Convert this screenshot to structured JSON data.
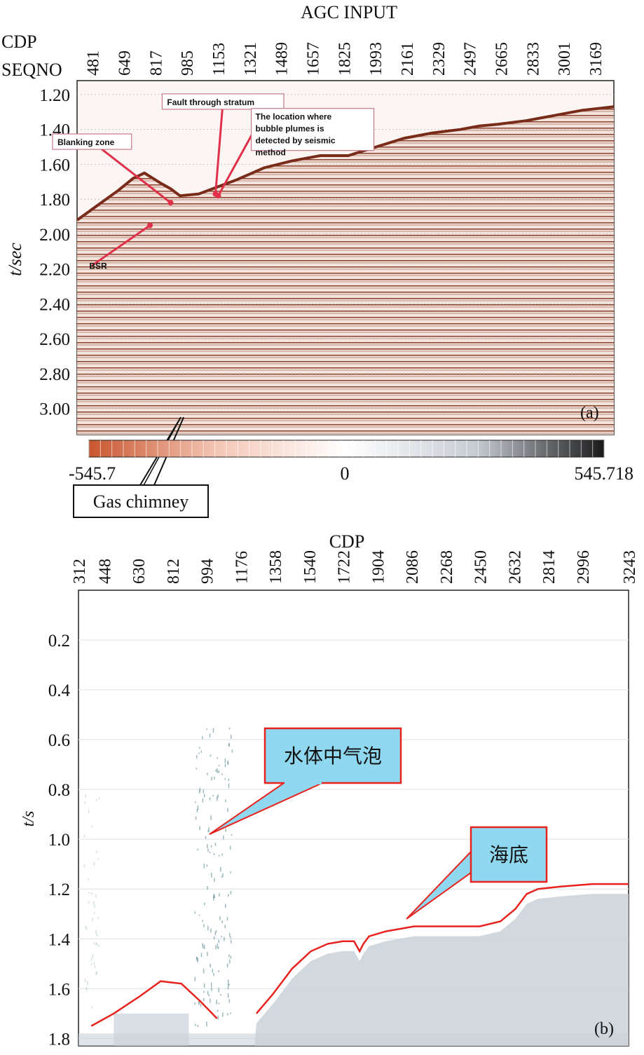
{
  "chart_data": [
    {
      "type": "heatmap",
      "panel_label": "(a)",
      "title": "AGC INPUT",
      "top_axis_labels": [
        "CDP",
        "SEQNO"
      ],
      "x_ticks": [
        "481",
        "649",
        "817",
        "985",
        "1153",
        "1321",
        "1489",
        "1657",
        "1825",
        "1993",
        "2161",
        "2329",
        "2497",
        "2665",
        "2833",
        "3001",
        "3169"
      ],
      "ylabel": "t/sec",
      "y_ticks": [
        "1.20",
        "1.40",
        "1.60",
        "1.80",
        "2.00",
        "2.20",
        "2.40",
        "2.60",
        "2.80",
        "3.00"
      ],
      "ylim": [
        3.15,
        1.12
      ],
      "xlim": [
        400,
        3270
      ],
      "seafloor": {
        "x": [
          400,
          620,
          700,
          760,
          850,
          900,
          950,
          1050,
          1150,
          1250,
          1400,
          1550,
          1700,
          1850,
          2000,
          2150,
          2300,
          2450,
          2550,
          2650,
          2800,
          2950,
          3100,
          3270
        ],
        "t": [
          1.92,
          1.75,
          1.68,
          1.65,
          1.71,
          1.74,
          1.78,
          1.77,
          1.73,
          1.69,
          1.62,
          1.58,
          1.55,
          1.55,
          1.5,
          1.45,
          1.42,
          1.4,
          1.38,
          1.37,
          1.35,
          1.32,
          1.29,
          1.27
        ]
      },
      "annotations": [
        {
          "label": "Blanking zone",
          "text_x": 480,
          "text_t": 1.47,
          "arrow_to_x": 900,
          "arrow_to_t": 1.82
        },
        {
          "label": "Fault through stratum",
          "text_x": 1180,
          "text_t": 1.24,
          "arrow_to_x": 1140,
          "arrow_to_t": 1.77
        },
        {
          "label": "The location where bubble plumes is detected by seismic method",
          "text_x": 1350,
          "text_t": 1.4,
          "arrow_to_x": 1155,
          "arrow_to_t": 1.78
        },
        {
          "label": "BSR",
          "text_x": 480,
          "text_t": 2.18,
          "arrow_to_x": 790,
          "arrow_to_t": 1.95
        },
        {
          "label": "Gas chimney",
          "text_x": 700,
          "text_t": 3.55,
          "arrow_to_x": 955,
          "arrow_to_t": 3.05
        }
      ],
      "colorbar": {
        "min_label": "-545.7",
        "mid_label": "0",
        "max_label": "545.718",
        "colors": [
          "#c8562f",
          "#f4c7b6",
          "#ffffff",
          "#c7ccd3",
          "#1a1a1a"
        ]
      }
    },
    {
      "type": "heatmap",
      "panel_label": "(b)",
      "title": "CDP",
      "x_ticks": [
        "312",
        "448",
        "630",
        "812",
        "994",
        "1176",
        "1358",
        "1540",
        "1722",
        "1904",
        "2086",
        "2268",
        "2450",
        "2632",
        "2814",
        "2996",
        "3243"
      ],
      "ylabel": "t/s",
      "y_ticks": [
        "0.2",
        "0.4",
        "0.6",
        "0.8",
        "1.0",
        "1.2",
        "1.4",
        "1.6",
        "1.8"
      ],
      "ylim": [
        0.0,
        1.83
      ],
      "xlim": [
        312,
        3243
      ],
      "seafloor": {
        "segments": [
          {
            "x": [
              380,
              500,
              640,
              750,
              860,
              960,
              1050
            ],
            "t": [
              1.75,
              1.7,
              1.63,
              1.57,
              1.58,
              1.65,
              1.72
            ]
          },
          {
            "x": [
              1260,
              1350,
              1450,
              1550,
              1640,
              1720,
              1780,
              1810,
              1830,
              1860,
              1950,
              2100,
              2300,
              2450,
              2560,
              2640,
              2700,
              2760,
              2880,
              3050,
              3243
            ],
            "t": [
              1.7,
              1.62,
              1.52,
              1.45,
              1.42,
              1.41,
              1.41,
              1.45,
              1.42,
              1.39,
              1.37,
              1.35,
              1.35,
              1.35,
              1.33,
              1.28,
              1.22,
              1.2,
              1.19,
              1.18,
              1.18
            ]
          }
        ]
      },
      "annotations": [
        {
          "label": "水体中气泡",
          "arrow_to_x": 1010,
          "arrow_to_t": 0.98
        },
        {
          "label": "海底",
          "arrow_to_x": 2060,
          "arrow_to_t": 1.32
        }
      ],
      "colors": {
        "seafloor_line": "#e8231f",
        "callout_fill": "#8fd8f0",
        "callout_border": "#e8231f",
        "callout_text": "#1f4fd6",
        "sediment_fill": "#c9d2d8"
      }
    }
  ]
}
